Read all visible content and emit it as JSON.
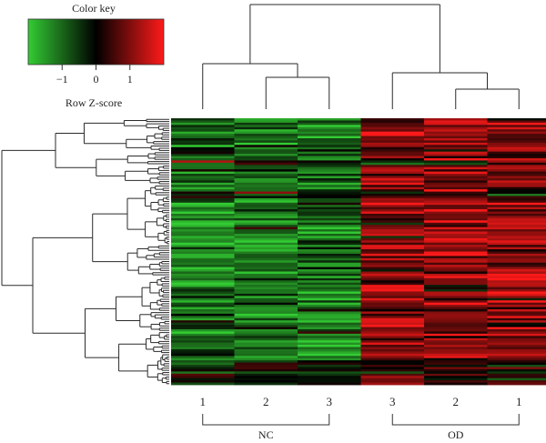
{
  "chart_data": {
    "type": "heatmap",
    "title": "",
    "color_key": {
      "title": "Color key",
      "xlabel": "Row Z-score",
      "range": [
        -2,
        2
      ],
      "ticks": [
        "−1",
        "0",
        "1"
      ],
      "tick_values": [
        -1,
        0,
        1
      ],
      "low_color": "#33cc33",
      "mid_color": "#000000",
      "high_color": "#ff1a1a"
    },
    "columns": [
      "1",
      "2",
      "3",
      "3",
      "2",
      "1"
    ],
    "groups": [
      {
        "name": "NC",
        "columns": [
          0,
          1,
          2
        ]
      },
      {
        "name": "OD",
        "columns": [
          3,
          4,
          5
        ]
      }
    ],
    "row_count": 120,
    "column_dendrogram": true,
    "row_dendrogram": true
  }
}
